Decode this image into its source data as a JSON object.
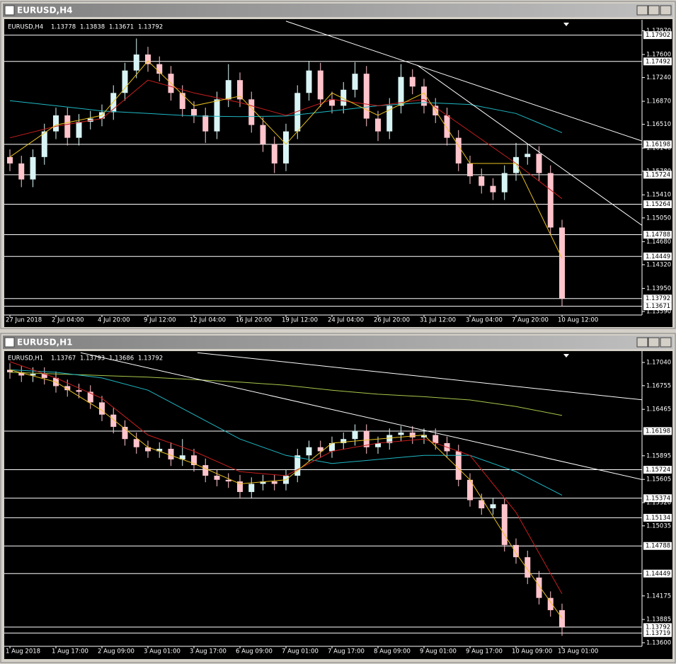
{
  "chart_data": [
    {
      "type": "candlestick",
      "symbol": "EURUSD,H4",
      "ohlc": [
        1.13778,
        1.13838,
        1.13671,
        1.13792
      ],
      "up_color": "#d8f4f4",
      "down_color": "#ffc4cc",
      "categories": [
        "27 Jun 2018",
        null,
        null,
        null,
        "2 Jul 04:00",
        null,
        null,
        null,
        "4 Jul 20:00",
        null,
        null,
        null,
        "9 Jul 12:00",
        null,
        null,
        null,
        "12 Jul 04:00",
        null,
        null,
        null,
        "16 Jul 20:00",
        null,
        null,
        null,
        "19 Jul 12:00",
        null,
        null,
        null,
        "24 Jul 04:00",
        null,
        null,
        null,
        "26 Jul 20:00",
        null,
        null,
        null,
        "31 Jul 12:00",
        null,
        null,
        null,
        "3 Aug 04:00",
        null,
        null,
        null,
        "7 Aug 20:00",
        null,
        null,
        null,
        "10 Aug 12:00"
      ],
      "open": [
        1.16,
        1.159,
        1.1565,
        1.16,
        1.164,
        1.1665,
        1.163,
        1.1655,
        1.166,
        1.167,
        1.17,
        1.1735,
        1.176,
        1.1745,
        1.173,
        1.17,
        1.1675,
        1.1665,
        1.164,
        1.169,
        1.172,
        1.169,
        1.165,
        1.162,
        1.159,
        1.164,
        1.17,
        1.1735,
        1.169,
        1.168,
        1.1705,
        1.173,
        1.166,
        1.164,
        1.168,
        1.1725,
        1.171,
        1.168,
        1.1665,
        1.163,
        1.159,
        1.157,
        1.1555,
        1.1545,
        1.1575,
        1.16,
        1.1605,
        1.1575,
        1.149
      ],
      "high": [
        1.1612,
        1.1602,
        1.1612,
        1.1652,
        1.1677,
        1.1677,
        1.1667,
        1.1672,
        1.1682,
        1.1712,
        1.1747,
        1.1785,
        1.1772,
        1.1757,
        1.1742,
        1.1712,
        1.1687,
        1.1677,
        1.1702,
        1.1745,
        1.1732,
        1.1702,
        1.1662,
        1.1632,
        1.1652,
        1.1712,
        1.175,
        1.1747,
        1.1702,
        1.1717,
        1.1748,
        1.1742,
        1.1672,
        1.1692,
        1.1745,
        1.1737,
        1.1722,
        1.1692,
        1.1677,
        1.1642,
        1.1602,
        1.1582,
        1.1567,
        1.1587,
        1.1622,
        1.162,
        1.1617,
        1.1587,
        1.1502
      ],
      "low": [
        1.1578,
        1.1553,
        1.1553,
        1.1588,
        1.1628,
        1.1618,
        1.1618,
        1.1643,
        1.1648,
        1.1658,
        1.1688,
        1.1723,
        1.1733,
        1.1718,
        1.1688,
        1.1663,
        1.1653,
        1.1622,
        1.1628,
        1.1678,
        1.1678,
        1.1638,
        1.1608,
        1.1575,
        1.1578,
        1.1628,
        1.1688,
        1.1678,
        1.1668,
        1.1668,
        1.1693,
        1.1648,
        1.1625,
        1.1628,
        1.1668,
        1.1698,
        1.1668,
        1.1653,
        1.1618,
        1.1578,
        1.1558,
        1.1543,
        1.1533,
        1.1533,
        1.1563,
        1.1588,
        1.1563,
        1.1478,
        1.13671
      ],
      "close": [
        1.159,
        1.1565,
        1.16,
        1.164,
        1.1665,
        1.163,
        1.1655,
        1.166,
        1.167,
        1.17,
        1.1735,
        1.176,
        1.1745,
        1.173,
        1.17,
        1.1675,
        1.1665,
        1.164,
        1.169,
        1.172,
        1.169,
        1.165,
        1.162,
        1.159,
        1.164,
        1.17,
        1.1735,
        1.169,
        1.168,
        1.1705,
        1.173,
        1.166,
        1.164,
        1.168,
        1.1725,
        1.171,
        1.168,
        1.1665,
        1.163,
        1.159,
        1.157,
        1.1555,
        1.1545,
        1.1575,
        1.16,
        1.1605,
        1.1575,
        1.149,
        1.13792
      ],
      "lines": [
        {
          "color": "#1fb8c4",
          "x": [
            0,
            4,
            8,
            12,
            16,
            20,
            24,
            28,
            32,
            36,
            40,
            44,
            48
          ],
          "values": [
            1.1688,
            1.168,
            1.1672,
            1.1668,
            1.1664,
            1.1663,
            1.1664,
            1.1672,
            1.168,
            1.1685,
            1.1682,
            1.1668,
            1.1638
          ]
        },
        {
          "color": "#c81e1e",
          "x": [
            0,
            4,
            8,
            12,
            16,
            20,
            24,
            28,
            32,
            36,
            40,
            44,
            48
          ],
          "values": [
            1.163,
            1.1648,
            1.166,
            1.172,
            1.17,
            1.1685,
            1.1665,
            1.169,
            1.168,
            1.169,
            1.164,
            1.159,
            1.1535
          ]
        },
        {
          "color": "#e8c020",
          "x": [
            0,
            4,
            8,
            12,
            16,
            20,
            24,
            28,
            32,
            36,
            40,
            44,
            48
          ],
          "values": [
            1.16,
            1.165,
            1.1665,
            1.175,
            1.168,
            1.1695,
            1.162,
            1.17,
            1.1665,
            1.17,
            1.159,
            1.159,
            1.1442
          ]
        }
      ],
      "trendlines": [
        {
          "color": "#ffffff",
          "x": [
            24,
            55.1
          ],
          "values": [
            1.1812,
            1.16241
          ]
        },
        {
          "color": "#ffffff",
          "x": [
            35.4,
            55.1
          ],
          "values": [
            1.17434,
            1.14915
          ]
        }
      ],
      "hlines": [
        1.17902,
        1.17492,
        1.16198,
        1.15724,
        1.15264,
        1.14788,
        1.14449,
        1.13792,
        1.13671
      ],
      "ylim": [
        1.13546,
        1.18119
      ],
      "yticks": [
        {
          "value": 1.1797,
          "label": "1.17970"
        },
        {
          "value": 1.176,
          "label": "1.17600"
        },
        {
          "value": 1.1724,
          "label": "1.17240"
        },
        {
          "value": 1.1687,
          "label": "1.16870"
        },
        {
          "value": 1.1651,
          "label": "1.16510"
        },
        {
          "value": 1.1614,
          "label": "1.16140"
        },
        {
          "value": 1.1578,
          "label": "1.15780"
        },
        {
          "value": 1.1541,
          "label": "1.15410"
        },
        {
          "value": 1.1505,
          "label": "1.15050"
        },
        {
          "value": 1.1468,
          "label": "1.14680"
        },
        {
          "value": 1.1432,
          "label": "1.14320"
        },
        {
          "value": 1.1395,
          "label": "1.13950"
        },
        {
          "value": 1.1359,
          "label": "1.13590"
        }
      ]
    },
    {
      "type": "candlestick",
      "symbol": "EURUSD,H1",
      "ohlc": [
        1.13767,
        1.13793,
        1.13686,
        1.13792
      ],
      "up_color": "#d8f4f4",
      "down_color": "#ffc4cc",
      "categories": [
        "1 Aug 2018",
        null,
        null,
        null,
        "1 Aug 17:00",
        null,
        null,
        null,
        "2 Aug 09:00",
        null,
        null,
        null,
        "3 Aug 01:00",
        null,
        null,
        null,
        "3 Aug 17:00",
        null,
        null,
        null,
        "6 Aug 09:00",
        null,
        null,
        null,
        "7 Aug 01:00",
        null,
        null,
        null,
        "7 Aug 17:00",
        null,
        null,
        null,
        "8 Aug 09:00",
        null,
        null,
        null,
        "9 Aug 01:00",
        null,
        null,
        null,
        "9 Aug 17:00",
        null,
        null,
        null,
        "10 Aug 09:00",
        null,
        null,
        null,
        "13 Aug 01:00"
      ],
      "open": [
        1.1695,
        1.1692,
        1.1688,
        1.169,
        1.1685,
        1.1675,
        1.167,
        1.1668,
        1.1655,
        1.164,
        1.1625,
        1.161,
        1.16,
        1.1595,
        1.1598,
        1.1585,
        1.159,
        1.1578,
        1.1565,
        1.156,
        1.1558,
        1.1545,
        1.1555,
        1.1558,
        1.1555,
        1.1565,
        1.159,
        1.16,
        1.1595,
        1.1605,
        1.161,
        1.162,
        1.16,
        1.1605,
        1.1615,
        1.1618,
        1.1612,
        1.1615,
        1.1605,
        1.1595,
        1.156,
        1.1535,
        1.1525,
        1.153,
        1.148,
        1.1465,
        1.144,
        1.1415,
        1.14
      ],
      "high": [
        1.1703,
        1.17,
        1.1698,
        1.1698,
        1.1693,
        1.1683,
        1.1678,
        1.1676,
        1.1663,
        1.1648,
        1.1633,
        1.1618,
        1.1608,
        1.1606,
        1.1606,
        1.161,
        1.1598,
        1.1586,
        1.1573,
        1.1568,
        1.1566,
        1.1563,
        1.1566,
        1.1566,
        1.1573,
        1.1598,
        1.1608,
        1.1608,
        1.1613,
        1.1618,
        1.1628,
        1.1628,
        1.1613,
        1.1623,
        1.1626,
        1.1626,
        1.1623,
        1.1623,
        1.1613,
        1.1603,
        1.1568,
        1.1543,
        1.1538,
        1.1538,
        1.1488,
        1.1473,
        1.1448,
        1.1423,
        1.1408
      ],
      "low": [
        1.1684,
        1.168,
        1.168,
        1.1677,
        1.1667,
        1.1662,
        1.166,
        1.1647,
        1.1632,
        1.1617,
        1.1602,
        1.1592,
        1.1587,
        1.1587,
        1.1577,
        1.1577,
        1.157,
        1.1557,
        1.1552,
        1.155,
        1.1537,
        1.1537,
        1.1547,
        1.1547,
        1.1547,
        1.1557,
        1.1582,
        1.1587,
        1.1587,
        1.1597,
        1.1602,
        1.1592,
        1.1592,
        1.1597,
        1.1607,
        1.1604,
        1.1604,
        1.1597,
        1.1587,
        1.1552,
        1.1527,
        1.1517,
        1.1517,
        1.1472,
        1.1457,
        1.1432,
        1.1407,
        1.1392,
        1.13686
      ],
      "close": [
        1.1692,
        1.1688,
        1.169,
        1.1685,
        1.1675,
        1.167,
        1.1668,
        1.1655,
        1.164,
        1.1625,
        1.161,
        1.16,
        1.1595,
        1.1598,
        1.1585,
        1.159,
        1.1578,
        1.1565,
        1.156,
        1.1558,
        1.1545,
        1.1555,
        1.1558,
        1.1555,
        1.1565,
        1.159,
        1.16,
        1.1595,
        1.1605,
        1.161,
        1.162,
        1.16,
        1.1605,
        1.1615,
        1.1618,
        1.1612,
        1.1615,
        1.1605,
        1.1595,
        1.156,
        1.1535,
        1.1525,
        1.153,
        1.148,
        1.1465,
        1.144,
        1.1415,
        1.14,
        1.13792
      ],
      "lines": [
        {
          "color": "#a8c84a",
          "x": [
            0,
            4,
            8,
            12,
            16,
            20,
            24,
            28,
            32,
            36,
            40,
            44,
            48
          ],
          "values": [
            1.1692,
            1.169,
            1.1688,
            1.1686,
            1.1683,
            1.168,
            1.1676,
            1.167,
            1.1665,
            1.1662,
            1.1658,
            1.165,
            1.1639
          ]
        },
        {
          "color": "#1fb8c4",
          "x": [
            0,
            4,
            8,
            12,
            16,
            20,
            24,
            28,
            32,
            36,
            40,
            44,
            48
          ],
          "values": [
            1.1695,
            1.1692,
            1.1685,
            1.167,
            1.164,
            1.161,
            1.159,
            1.158,
            1.1585,
            1.159,
            1.159,
            1.157,
            1.1541
          ]
        },
        {
          "color": "#c81e1e",
          "x": [
            0,
            4,
            8,
            12,
            16,
            20,
            24,
            28,
            32,
            36,
            40,
            44,
            48
          ],
          "values": [
            1.1705,
            1.1685,
            1.166,
            1.1615,
            1.1595,
            1.157,
            1.1565,
            1.1595,
            1.1605,
            1.161,
            1.159,
            1.152,
            1.142
          ]
        },
        {
          "color": "#e8c020",
          "x": [
            0,
            4,
            8,
            12,
            16,
            20,
            24,
            28,
            32,
            36,
            40,
            44,
            48
          ],
          "values": [
            1.1695,
            1.168,
            1.1645,
            1.16,
            1.158,
            1.1555,
            1.156,
            1.1605,
            1.161,
            1.1615,
            1.156,
            1.147,
            1.139
          ]
        }
      ],
      "trendlines": [
        {
          "color": "#ffffff",
          "x": [
            16.3,
            55.1
          ],
          "values": [
            1.1716,
            1.1658
          ]
        },
        {
          "color": "#ffffff",
          "x": [
            6.15,
            55.1
          ],
          "values": [
            1.1716,
            1.15598
          ]
        }
      ],
      "hlines": [
        1.16198,
        1.15724,
        1.15374,
        1.15134,
        1.14788,
        1.14449,
        1.13792,
        1.13719
      ],
      "ylim": [
        1.13565,
        1.17162
      ],
      "yticks": [
        {
          "value": 1.1704,
          "label": "1.17040"
        },
        1.16755,
        1.16465,
        1.15895,
        1.15605,
        {
          "value": 1.1532,
          "label": "1.15320"
        },
        1.15035,
        1.14175,
        1.13885,
        {
          "value": 1.136,
          "label": "1.13600"
        }
      ]
    }
  ]
}
